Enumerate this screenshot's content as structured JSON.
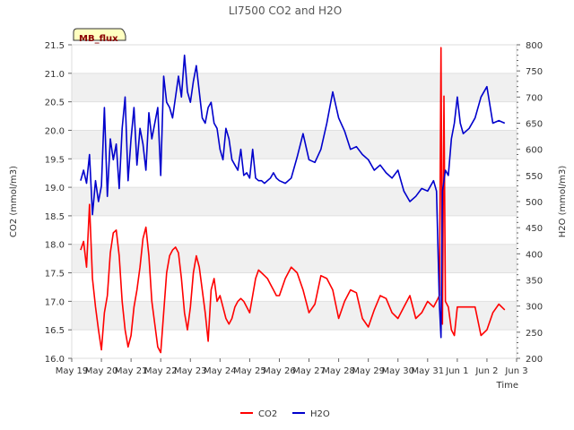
{
  "chart_data": {
    "type": "line",
    "title": "LI7500 CO2 and H2O",
    "badge": "MB_flux",
    "xlabel": "Time",
    "ylabel_left": "CO2 (mmol/m3)",
    "ylabel_right": "H2O (mmol/m3)",
    "x_ticks": [
      "May 19",
      "May 20",
      "May 21",
      "May 22",
      "May 23",
      "May 24",
      "May 25",
      "May 26",
      "May 27",
      "May 28",
      "May 29",
      "May 30",
      "May 31",
      "Jun 1",
      "Jun 2",
      "Jun 3"
    ],
    "x_range_days": [
      0,
      15
    ],
    "ylim_left": [
      16.0,
      21.5
    ],
    "ylim_right": [
      200,
      800
    ],
    "left_ticks": [
      "16.0",
      "16.5",
      "17.0",
      "17.5",
      "18.0",
      "18.5",
      "19.0",
      "19.5",
      "20.0",
      "20.5",
      "21.0",
      "21.5"
    ],
    "right_ticks": [
      "200",
      "250",
      "300",
      "350",
      "400",
      "450",
      "500",
      "550",
      "600",
      "650",
      "700",
      "750",
      "800"
    ],
    "grid": "horizontal bands",
    "legend_position": "bottom-center",
    "colors": {
      "co2": "#ff0000",
      "h2o": "#0000cc",
      "band": "#f0f0f0",
      "badge_bg": "#ffffc0"
    },
    "series": [
      {
        "name": "CO2",
        "axis": "left",
        "x": [
          0.3,
          0.4,
          0.5,
          0.6,
          0.7,
          0.8,
          0.9,
          1.0,
          1.1,
          1.2,
          1.3,
          1.4,
          1.5,
          1.6,
          1.7,
          1.8,
          1.9,
          2.0,
          2.1,
          2.2,
          2.3,
          2.4,
          2.5,
          2.6,
          2.7,
          2.8,
          2.9,
          3.0,
          3.1,
          3.2,
          3.3,
          3.4,
          3.5,
          3.6,
          3.7,
          3.8,
          3.9,
          4.0,
          4.1,
          4.2,
          4.3,
          4.4,
          4.5,
          4.6,
          4.7,
          4.8,
          4.9,
          5.0,
          5.1,
          5.2,
          5.3,
          5.4,
          5.5,
          5.6,
          5.7,
          5.8,
          5.9,
          6.0,
          6.1,
          6.2,
          6.3,
          6.4,
          6.5,
          6.6,
          6.7,
          6.8,
          6.9,
          7.0,
          7.2,
          7.4,
          7.6,
          7.8,
          8.0,
          8.2,
          8.4,
          8.6,
          8.8,
          9.0,
          9.2,
          9.4,
          9.6,
          9.8,
          10.0,
          10.2,
          10.4,
          10.6,
          10.8,
          11.0,
          11.2,
          11.4,
          11.6,
          11.8,
          12.0,
          12.2,
          12.4,
          12.45,
          12.5,
          12.55,
          12.6,
          12.7,
          12.8,
          12.9,
          13.0,
          13.2,
          13.4,
          13.6,
          13.8,
          14.0,
          14.2,
          14.4,
          14.6
        ],
        "values": [
          17.9,
          18.05,
          17.6,
          18.7,
          17.4,
          16.9,
          16.5,
          16.15,
          16.8,
          17.1,
          17.85,
          18.2,
          18.25,
          17.8,
          17.0,
          16.5,
          16.2,
          16.4,
          16.9,
          17.2,
          17.6,
          18.1,
          18.3,
          17.8,
          17.0,
          16.6,
          16.2,
          16.1,
          16.8,
          17.5,
          17.8,
          17.9,
          17.95,
          17.85,
          17.4,
          16.8,
          16.5,
          16.9,
          17.5,
          17.8,
          17.6,
          17.2,
          16.8,
          16.3,
          17.2,
          17.4,
          17.0,
          17.1,
          16.9,
          16.7,
          16.6,
          16.7,
          16.9,
          17.0,
          17.05,
          17.0,
          16.9,
          16.8,
          17.1,
          17.4,
          17.55,
          17.5,
          17.45,
          17.4,
          17.3,
          17.2,
          17.1,
          17.1,
          17.4,
          17.6,
          17.5,
          17.2,
          16.8,
          16.95,
          17.45,
          17.4,
          17.2,
          16.7,
          17.0,
          17.2,
          17.15,
          16.7,
          16.55,
          16.85,
          17.1,
          17.05,
          16.8,
          16.7,
          16.9,
          17.1,
          16.7,
          16.8,
          17.0,
          16.9,
          17.1,
          21.45,
          16.6,
          20.6,
          17.0,
          16.9,
          16.5,
          16.4,
          16.9,
          16.9,
          16.9,
          16.9,
          16.4,
          16.5,
          16.8,
          16.95,
          16.85
        ]
      },
      {
        "name": "H2O",
        "axis": "right",
        "x": [
          0.3,
          0.4,
          0.5,
          0.6,
          0.7,
          0.8,
          0.9,
          1.0,
          1.1,
          1.2,
          1.3,
          1.4,
          1.5,
          1.6,
          1.7,
          1.8,
          1.9,
          2.0,
          2.1,
          2.2,
          2.3,
          2.4,
          2.5,
          2.6,
          2.7,
          2.8,
          2.9,
          3.0,
          3.1,
          3.2,
          3.3,
          3.4,
          3.5,
          3.6,
          3.7,
          3.8,
          3.9,
          4.0,
          4.1,
          4.2,
          4.3,
          4.4,
          4.5,
          4.6,
          4.7,
          4.8,
          4.9,
          5.0,
          5.1,
          5.2,
          5.3,
          5.4,
          5.5,
          5.6,
          5.7,
          5.8,
          5.9,
          6.0,
          6.1,
          6.2,
          6.3,
          6.4,
          6.5,
          6.6,
          6.7,
          6.8,
          6.9,
          7.0,
          7.2,
          7.4,
          7.6,
          7.8,
          8.0,
          8.2,
          8.4,
          8.6,
          8.8,
          9.0,
          9.2,
          9.4,
          9.6,
          9.8,
          10.0,
          10.2,
          10.4,
          10.6,
          10.8,
          11.0,
          11.2,
          11.4,
          11.6,
          11.8,
          12.0,
          12.2,
          12.3,
          12.4,
          12.45,
          12.5,
          12.55,
          12.6,
          12.7,
          12.8,
          12.9,
          13.0,
          13.1,
          13.2,
          13.4,
          13.6,
          13.8,
          14.0,
          14.2,
          14.4,
          14.6
        ],
        "values": [
          540,
          560,
          535,
          590,
          475,
          540,
          500,
          530,
          680,
          510,
          620,
          580,
          610,
          525,
          640,
          700,
          540,
          620,
          680,
          570,
          640,
          610,
          560,
          670,
          620,
          650,
          680,
          550,
          740,
          690,
          680,
          660,
          700,
          740,
          700,
          780,
          710,
          690,
          730,
          760,
          710,
          660,
          650,
          680,
          690,
          650,
          640,
          600,
          580,
          640,
          620,
          580,
          570,
          560,
          600,
          550,
          555,
          545,
          600,
          545,
          540,
          540,
          535,
          540,
          545,
          555,
          545,
          540,
          535,
          545,
          585,
          630,
          580,
          575,
          600,
          650,
          710,
          660,
          635,
          600,
          605,
          590,
          580,
          560,
          570,
          555,
          545,
          560,
          520,
          500,
          510,
          525,
          520,
          540,
          520,
          300,
          240,
          520,
          540,
          560,
          550,
          620,
          650,
          700,
          650,
          630,
          640,
          660,
          700,
          720,
          650,
          655,
          650
        ]
      }
    ]
  }
}
